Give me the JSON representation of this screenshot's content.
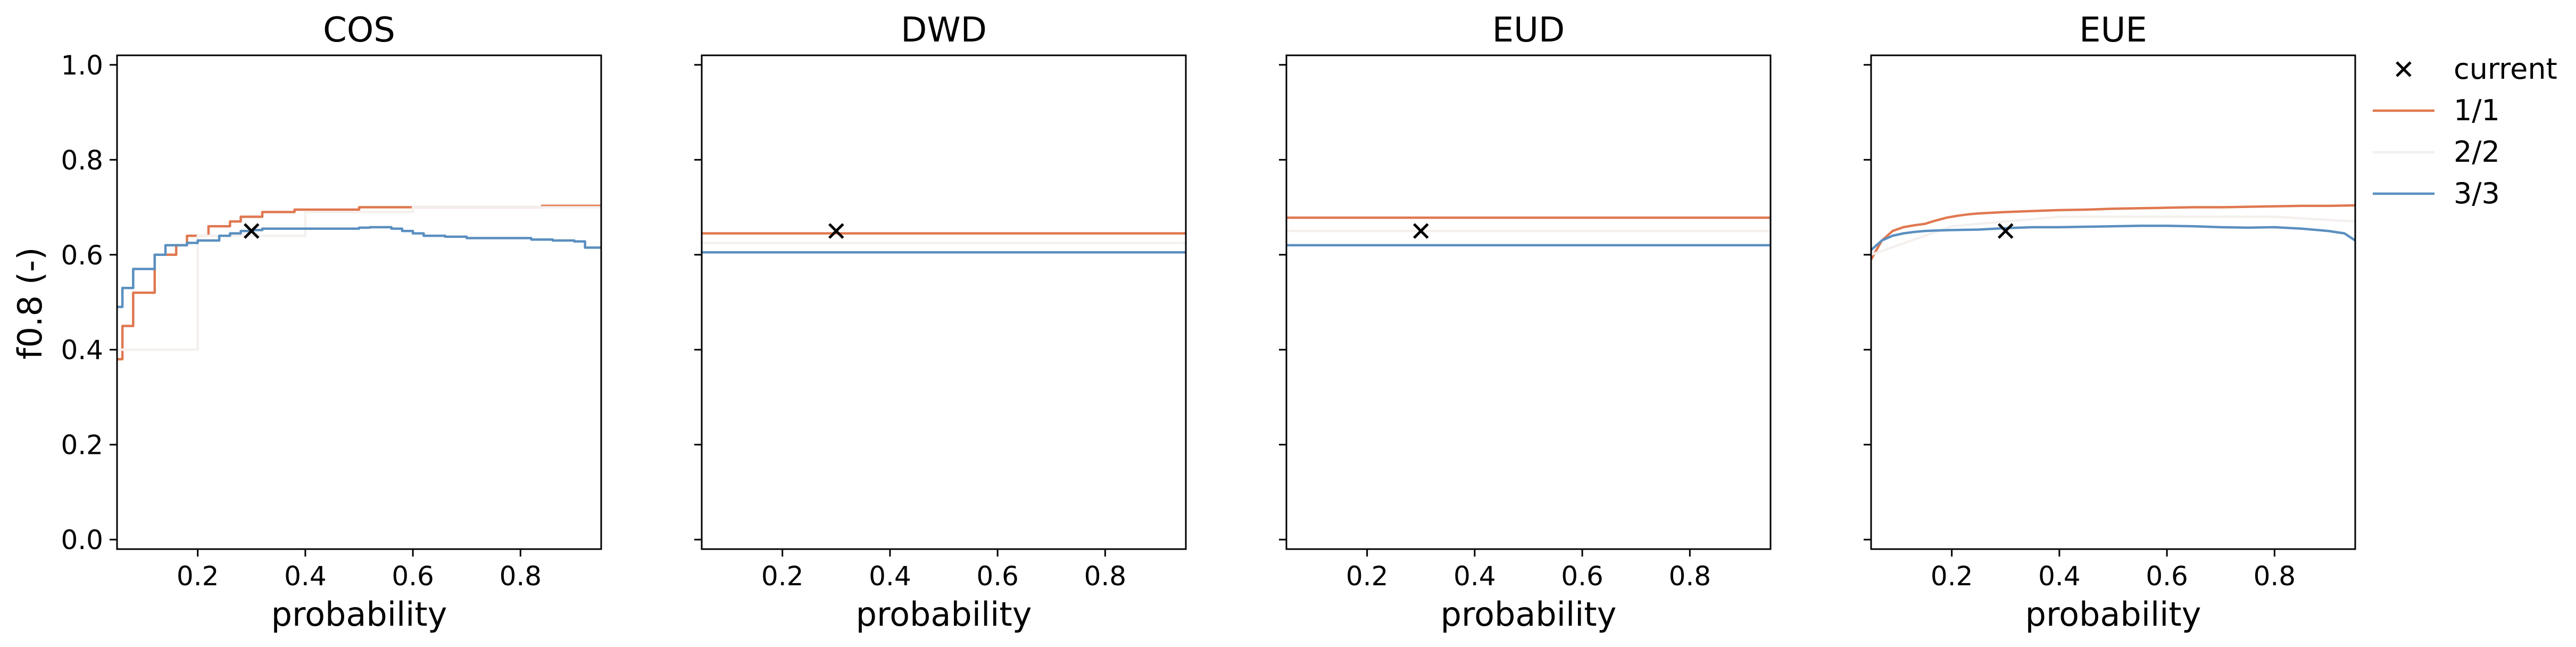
{
  "chart_data": {
    "type": "line",
    "ylabel": "f0.8 (-)",
    "xlabel": "probability",
    "xlim": [
      0.05,
      0.95
    ],
    "ylim": [
      -0.02,
      1.02
    ],
    "x_ticks": [
      0.2,
      0.4,
      0.6,
      0.8
    ],
    "y_ticks": [
      0.0,
      0.2,
      0.4,
      0.6,
      0.8,
      1.0
    ],
    "legend": {
      "placement": "outside-right",
      "entries": [
        {
          "label": "current",
          "marker": "x",
          "color": "#000000"
        },
        {
          "label": "1/1",
          "color": "#e07850"
        },
        {
          "label": "2/2",
          "color": "#f4f0ee"
        },
        {
          "label": "3/3",
          "color": "#5a8fc0"
        }
      ]
    },
    "panels": [
      {
        "title": "COS",
        "current": {
          "x": 0.3,
          "y": 0.65
        },
        "series": [
          {
            "name": "1/1",
            "color": "#e07850",
            "step": true,
            "x": [
              0.05,
              0.06,
              0.08,
              0.1,
              0.12,
              0.14,
              0.16,
              0.18,
              0.2,
              0.22,
              0.24,
              0.26,
              0.28,
              0.3,
              0.32,
              0.34,
              0.36,
              0.38,
              0.4,
              0.42,
              0.44,
              0.46,
              0.48,
              0.5,
              0.52,
              0.54,
              0.56,
              0.58,
              0.6,
              0.62,
              0.64,
              0.66,
              0.68,
              0.7,
              0.72,
              0.74,
              0.76,
              0.78,
              0.8,
              0.82,
              0.84,
              0.86,
              0.88,
              0.9,
              0.92,
              0.95
            ],
            "y": [
              0.38,
              0.45,
              0.52,
              0.52,
              0.6,
              0.6,
              0.62,
              0.64,
              0.64,
              0.66,
              0.66,
              0.67,
              0.68,
              0.68,
              0.69,
              0.69,
              0.69,
              0.695,
              0.695,
              0.695,
              0.695,
              0.695,
              0.695,
              0.7,
              0.7,
              0.7,
              0.7,
              0.7,
              0.7,
              0.7,
              0.7,
              0.7,
              0.7,
              0.7,
              0.7,
              0.7,
              0.7,
              0.7,
              0.7,
              0.7,
              0.703,
              0.703,
              0.703,
              0.703,
              0.703,
              0.703
            ]
          },
          {
            "name": "2/2",
            "color": "#f4f0ee",
            "step": true,
            "x": [
              0.05,
              0.2,
              0.4,
              0.6,
              0.8,
              0.95
            ],
            "y": [
              0.4,
              0.64,
              0.69,
              0.7,
              0.7,
              0.7
            ]
          },
          {
            "name": "3/3",
            "color": "#5a8fc0",
            "step": true,
            "x": [
              0.05,
              0.06,
              0.08,
              0.1,
              0.12,
              0.14,
              0.16,
              0.18,
              0.2,
              0.22,
              0.24,
              0.26,
              0.28,
              0.3,
              0.32,
              0.34,
              0.36,
              0.38,
              0.4,
              0.42,
              0.44,
              0.46,
              0.48,
              0.5,
              0.52,
              0.54,
              0.56,
              0.58,
              0.6,
              0.62,
              0.64,
              0.66,
              0.68,
              0.7,
              0.72,
              0.74,
              0.76,
              0.78,
              0.8,
              0.82,
              0.84,
              0.86,
              0.88,
              0.9,
              0.92,
              0.95
            ],
            "y": [
              0.49,
              0.53,
              0.57,
              0.57,
              0.6,
              0.62,
              0.62,
              0.625,
              0.63,
              0.63,
              0.64,
              0.645,
              0.65,
              0.652,
              0.655,
              0.655,
              0.655,
              0.655,
              0.655,
              0.655,
              0.655,
              0.655,
              0.655,
              0.657,
              0.658,
              0.658,
              0.655,
              0.65,
              0.645,
              0.64,
              0.64,
              0.638,
              0.638,
              0.635,
              0.635,
              0.635,
              0.635,
              0.635,
              0.635,
              0.632,
              0.632,
              0.63,
              0.63,
              0.628,
              0.615,
              0.615
            ]
          }
        ]
      },
      {
        "title": "DWD",
        "current": {
          "x": 0.3,
          "y": 0.65
        },
        "series": [
          {
            "name": "1/1",
            "color": "#e07850",
            "step": false,
            "x": [
              0.05,
              0.95
            ],
            "y": [
              0.645,
              0.645
            ]
          },
          {
            "name": "2/2",
            "color": "#f4f0ee",
            "step": false,
            "x": [
              0.05,
              0.95
            ],
            "y": [
              0.625,
              0.625
            ]
          },
          {
            "name": "3/3",
            "color": "#5a8fc0",
            "step": false,
            "x": [
              0.05,
              0.95
            ],
            "y": [
              0.605,
              0.605
            ]
          }
        ]
      },
      {
        "title": "EUD",
        "current": {
          "x": 0.3,
          "y": 0.65
        },
        "series": [
          {
            "name": "1/1",
            "color": "#e07850",
            "step": false,
            "x": [
              0.05,
              0.95
            ],
            "y": [
              0.678,
              0.678
            ]
          },
          {
            "name": "2/2",
            "color": "#f4f0ee",
            "step": false,
            "x": [
              0.05,
              0.95
            ],
            "y": [
              0.65,
              0.65
            ]
          },
          {
            "name": "3/3",
            "color": "#5a8fc0",
            "step": false,
            "x": [
              0.05,
              0.95
            ],
            "y": [
              0.62,
              0.62
            ]
          }
        ]
      },
      {
        "title": "EUE",
        "current": {
          "x": 0.3,
          "y": 0.65
        },
        "series": [
          {
            "name": "1/1",
            "color": "#e07850",
            "step": false,
            "x": [
              0.05,
              0.07,
              0.09,
              0.11,
              0.13,
              0.15,
              0.17,
              0.19,
              0.21,
              0.23,
              0.25,
              0.3,
              0.35,
              0.4,
              0.45,
              0.5,
              0.55,
              0.6,
              0.65,
              0.7,
              0.75,
              0.8,
              0.85,
              0.9,
              0.95
            ],
            "y": [
              0.59,
              0.63,
              0.65,
              0.658,
              0.662,
              0.665,
              0.672,
              0.678,
              0.682,
              0.685,
              0.687,
              0.69,
              0.692,
              0.694,
              0.695,
              0.697,
              0.698,
              0.699,
              0.7,
              0.7,
              0.701,
              0.702,
              0.703,
              0.703,
              0.704
            ]
          },
          {
            "name": "2/2",
            "color": "#f4f0ee",
            "step": false,
            "x": [
              0.05,
              0.2,
              0.4,
              0.6,
              0.8,
              0.95
            ],
            "y": [
              0.6,
              0.66,
              0.68,
              0.68,
              0.68,
              0.67
            ]
          },
          {
            "name": "3/3",
            "color": "#5a8fc0",
            "step": false,
            "x": [
              0.05,
              0.07,
              0.09,
              0.11,
              0.13,
              0.15,
              0.17,
              0.2,
              0.25,
              0.3,
              0.35,
              0.4,
              0.45,
              0.5,
              0.55,
              0.6,
              0.65,
              0.7,
              0.75,
              0.8,
              0.85,
              0.9,
              0.93,
              0.95
            ],
            "y": [
              0.61,
              0.63,
              0.64,
              0.645,
              0.648,
              0.65,
              0.651,
              0.652,
              0.653,
              0.656,
              0.658,
              0.658,
              0.659,
              0.66,
              0.661,
              0.661,
              0.66,
              0.658,
              0.657,
              0.658,
              0.655,
              0.65,
              0.645,
              0.63
            ]
          }
        ]
      }
    ]
  }
}
